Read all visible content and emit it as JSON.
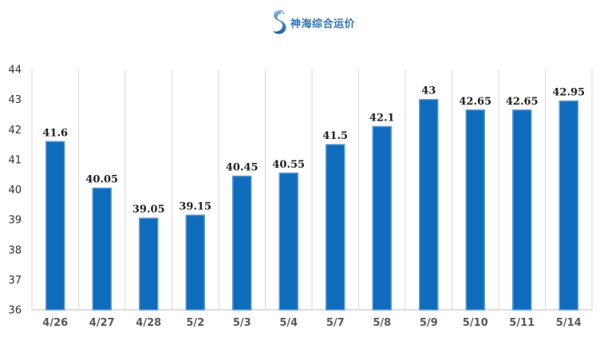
{
  "logo": {
    "text": "神海综合运价",
    "icon": "seahorse-s-logo-icon",
    "color": "#2f74b5"
  },
  "chart_data": {
    "type": "bar",
    "categories": [
      "4/26",
      "4/27",
      "4/28",
      "5/2",
      "5/3",
      "5/4",
      "5/7",
      "5/8",
      "5/9",
      "5/10",
      "5/11",
      "5/14"
    ],
    "values": [
      41.6,
      40.05,
      39.05,
      39.15,
      40.45,
      40.55,
      41.5,
      42.1,
      43,
      42.65,
      42.65,
      42.95
    ],
    "data_labels": [
      "41.6",
      "40.05",
      "39.05",
      "39.15",
      "40.45",
      "40.55",
      "41.5",
      "42.1",
      "43",
      "42.65",
      "42.65",
      "42.95"
    ],
    "yticks": [
      36,
      37,
      38,
      39,
      40,
      41,
      42,
      43,
      44
    ],
    "ylim": [
      36,
      44
    ],
    "title": "",
    "xlabel": "",
    "ylabel": "",
    "grid": "vertical-category-separators",
    "legend": "none",
    "bar_color": "#0f6cbd",
    "bar_edge_color": "#5b9bd5"
  }
}
